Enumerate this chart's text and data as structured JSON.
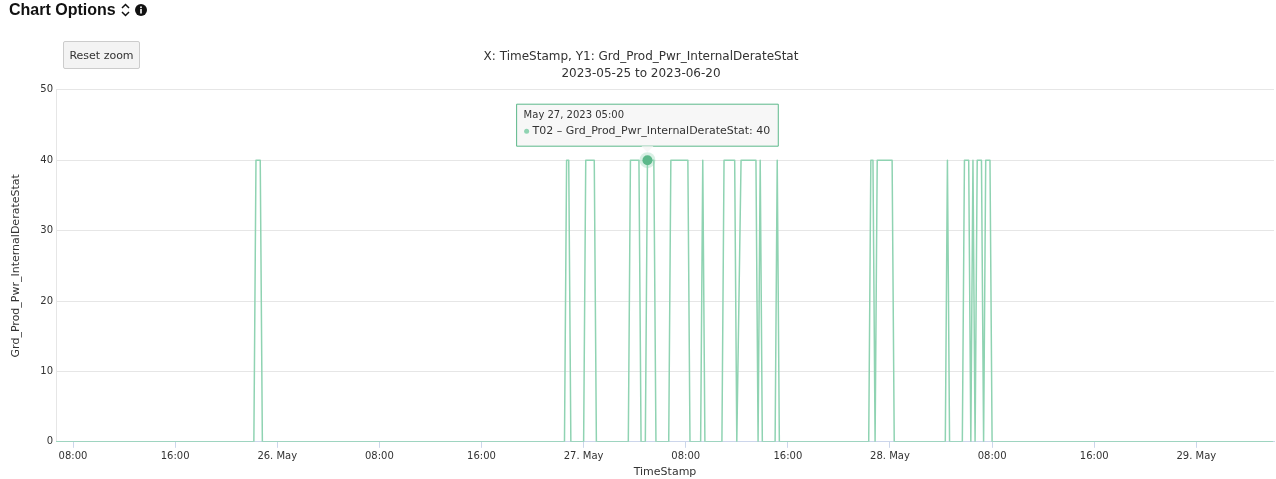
{
  "chart_data": {
    "type": "line",
    "title": "X: TimeStamp, Y1: Grd_Prod_Pwr_InternalDerateStat",
    "subtitle": "2023-05-25 to 2023-06-20",
    "xlabel": "TimeStamp",
    "ylabel": "Grd_Prod_Pwr_InternalDerateStat",
    "annotations": [
      "Chart Options",
      "Reset zoom",
      {
        "text": "May 27, 2023 05:00\nT02 – Grd_Prod_Pwr_InternalDerateStat: 40",
        "x": "2023-05-27T05:00",
        "y": 40
      }
    ],
    "series": [
      {
        "color": "#8fd3b2",
        "x": [
          "2023-05-25T06:40",
          "2023-05-25T22:10",
          "2023-05-25T22:20",
          "2023-05-25T22:40",
          "2023-05-25T22:50",
          "2023-05-26T22:30",
          "2023-05-26T22:40",
          "2023-05-26T22:50",
          "2023-05-26T23:00",
          "2023-05-27T00:00",
          "2023-05-27T00:10",
          "2023-05-27T00:50",
          "2023-05-27T01:00",
          "2023-05-27T03:30",
          "2023-05-27T03:40",
          "2023-05-27T04:20",
          "2023-05-27T04:30",
          "2023-05-27T04:50",
          "2023-05-27T05:00",
          "2023-05-27T05:30",
          "2023-05-27T05:40",
          "2023-05-27T06:40",
          "2023-05-27T06:50",
          "2023-05-27T08:10",
          "2023-05-27T08:20",
          "2023-05-27T09:10",
          "2023-05-27T09:20",
          "2023-05-27T09:30",
          "2023-05-27T10:50",
          "2023-05-27T11:00",
          "2023-05-27T11:50",
          "2023-05-27T12:00",
          "2023-05-27T12:20",
          "2023-05-27T13:30",
          "2023-05-27T13:40",
          "2023-05-27T13:50",
          "2023-05-27T14:00",
          "2023-05-27T15:00",
          "2023-05-27T15:10",
          "2023-05-27T15:20",
          "2023-05-27T22:20",
          "2023-05-27T22:30",
          "2023-05-27T22:40",
          "2023-05-27T22:50",
          "2023-05-27T23:00",
          "2023-05-28T00:10",
          "2023-05-28T00:20",
          "2023-05-28T04:20",
          "2023-05-28T04:30",
          "2023-05-28T04:40",
          "2023-05-28T05:40",
          "2023-05-28T05:50",
          "2023-05-28T06:10",
          "2023-05-28T06:20",
          "2023-05-28T06:30",
          "2023-05-28T06:40",
          "2023-05-28T06:50",
          "2023-05-28T07:10",
          "2023-05-28T07:20",
          "2023-05-28T07:30",
          "2023-05-28T07:50",
          "2023-05-28T08:00",
          "2023-05-29T06:00"
        ],
        "values": [
          0,
          0,
          40,
          40,
          0,
          0,
          40,
          40,
          0,
          0,
          40,
          40,
          0,
          0,
          40,
          40,
          0,
          0,
          40,
          40,
          0,
          0,
          40,
          40,
          0,
          0,
          40,
          0,
          0,
          40,
          40,
          0,
          40,
          40,
          0,
          40,
          0,
          0,
          40,
          0,
          0,
          40,
          40,
          0,
          40,
          40,
          0,
          0,
          40,
          0,
          0,
          40,
          40,
          0,
          40,
          0,
          40,
          40,
          0,
          40,
          40,
          0,
          0
        ]
      }
    ],
    "xlim": [
      "2023-05-25T06:40",
      "2023-05-29T06:05"
    ],
    "xticks": [
      {
        "value": "2023-05-25T08:00",
        "label": "08:00"
      },
      {
        "value": "2023-05-25T16:00",
        "label": "16:00"
      },
      {
        "value": "2023-05-26T00:00",
        "label": "26. May"
      },
      {
        "value": "2023-05-26T08:00",
        "label": "08:00"
      },
      {
        "value": "2023-05-26T16:00",
        "label": "16:00"
      },
      {
        "value": "2023-05-27T00:00",
        "label": "27. May"
      },
      {
        "value": "2023-05-27T08:00",
        "label": "08:00"
      },
      {
        "value": "2023-05-27T16:00",
        "label": "16:00"
      },
      {
        "value": "2023-05-28T00:00",
        "label": "28. May"
      },
      {
        "value": "2023-05-28T08:00",
        "label": "08:00"
      },
      {
        "value": "2023-05-28T16:00",
        "label": "16:00"
      },
      {
        "value": "2023-05-29T00:00",
        "label": "29. May"
      }
    ],
    "ylim": [
      0,
      50
    ],
    "yticks": [
      0,
      10,
      20,
      30,
      40,
      50
    ],
    "grid": "y",
    "legend": false,
    "marker": "none",
    "line_style": "solid"
  }
}
